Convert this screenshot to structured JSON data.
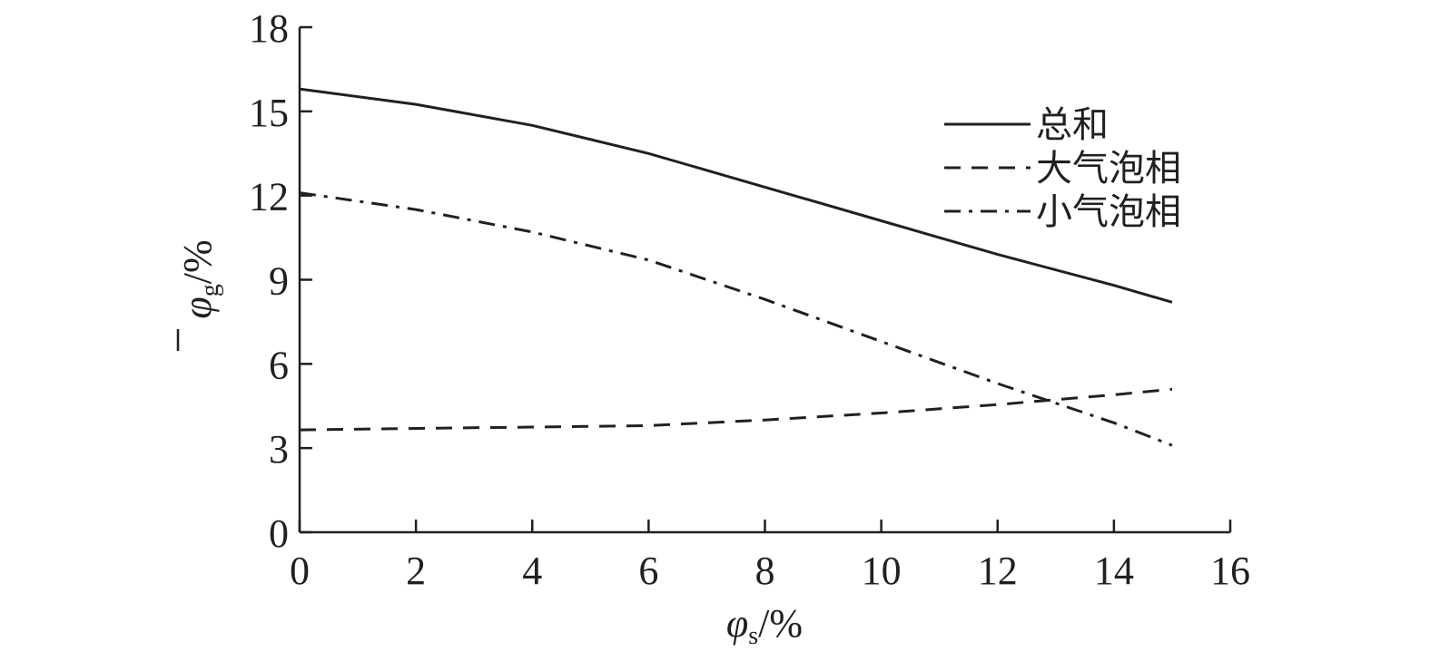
{
  "chart_data": {
    "type": "line",
    "xlabel": {
      "symbol": "φ",
      "sub": "s",
      "unit": "/%"
    },
    "ylabel": {
      "symbol": "φ",
      "sub": "g",
      "unit": "/%",
      "overbar": true
    },
    "xlim": [
      0,
      16
    ],
    "ylim": [
      0,
      18
    ],
    "xticks": [
      0,
      2,
      4,
      6,
      8,
      10,
      12,
      14,
      16
    ],
    "yticks": [
      0,
      3,
      6,
      9,
      12,
      15,
      18
    ],
    "grid": false,
    "legend_position": "top-right",
    "series": [
      {
        "name": "总和",
        "style": "solid",
        "x": [
          0,
          2,
          4,
          6,
          8,
          10,
          12,
          14,
          15
        ],
        "y": [
          15.8,
          15.25,
          14.5,
          13.5,
          12.3,
          11.1,
          9.9,
          8.8,
          8.2
        ]
      },
      {
        "name": "大气泡相",
        "style": "dashed",
        "x": [
          0,
          2,
          4,
          6,
          8,
          10,
          12,
          14,
          15
        ],
        "y": [
          3.65,
          3.7,
          3.75,
          3.8,
          4.0,
          4.25,
          4.55,
          4.9,
          5.1
        ]
      },
      {
        "name": "小气泡相",
        "style": "dashdot",
        "x": [
          0,
          2,
          4,
          6,
          8,
          10,
          12,
          14,
          15
        ],
        "y": [
          12.1,
          11.5,
          10.7,
          9.7,
          8.3,
          6.8,
          5.3,
          3.9,
          3.1
        ]
      }
    ]
  }
}
